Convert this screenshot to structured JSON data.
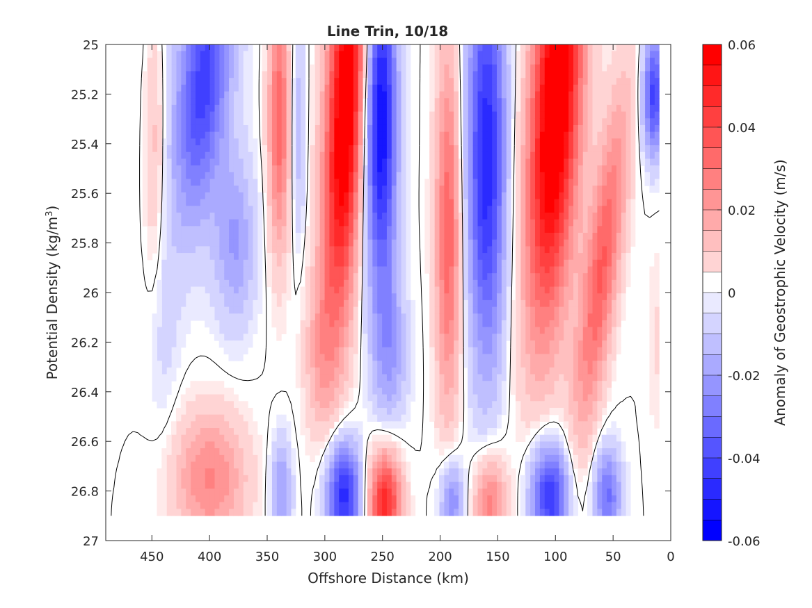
{
  "chart_data": {
    "type": "heatmap",
    "subtype": "filled-contour",
    "title": "Line Trin, 10/18",
    "xlabel": "Offshore Distance (km)",
    "ylabel_main": "Potential Density (kg/m",
    "ylabel_sup": "3",
    "ylabel_close": ")",
    "colorbar_label": "Anomaly of Geostrophic Velocity (m/s)",
    "xlim": [
      0,
      490
    ],
    "x_reversed": true,
    "ylim": [
      25,
      27
    ],
    "y_reversed": true,
    "xticks": [
      450,
      400,
      350,
      300,
      250,
      200,
      150,
      100,
      50,
      0
    ],
    "yticks": [
      25,
      25.2,
      25.4,
      25.6,
      25.8,
      26,
      26.2,
      26.4,
      26.6,
      26.8,
      27
    ],
    "ytick_labels": [
      "25",
      "25.2",
      "25.4",
      "25.6",
      "25.8",
      "26",
      "26.2",
      "26.4",
      "26.6",
      "26.8",
      "27"
    ],
    "colorbar_ticks": [
      0.06,
      0.04,
      0.02,
      0,
      -0.02,
      -0.04,
      -0.06
    ],
    "colorbar_tick_labels": [
      "0.06",
      "0.04",
      "0.02",
      "0",
      "-0.02",
      "-0.04",
      "-0.06"
    ],
    "color_levels": {
      "min": -0.06,
      "max": 0.06,
      "step": 0.005
    },
    "colormap": {
      "negative": "#0000ff",
      "zero": "#ffffff",
      "positive": "#ff0000"
    },
    "data_extent": {
      "x": [
        10,
        487
      ],
      "y": [
        25,
        26.9
      ]
    },
    "zero_contour": true,
    "grid": false,
    "legend": "colorbar-right",
    "features": [
      {
        "x": 430,
        "y": 25.0,
        "value": -0.004,
        "sx": 55,
        "sy": 0.9,
        "tilt": 0
      },
      {
        "x": 448,
        "y": 25.4,
        "value": 0.016,
        "sx": 9,
        "sy": 0.55,
        "tilt": 0
      },
      {
        "x": 405,
        "y": 25.15,
        "value": -0.04,
        "sx": 22,
        "sy": 0.55,
        "tilt": 20
      },
      {
        "x": 378,
        "y": 25.8,
        "value": -0.02,
        "sx": 18,
        "sy": 0.35,
        "tilt": 0
      },
      {
        "x": 440,
        "y": 26.2,
        "value": -0.006,
        "sx": 14,
        "sy": 0.45,
        "tilt": 0
      },
      {
        "x": 400,
        "y": 26.75,
        "value": 0.026,
        "sx": 32,
        "sy": 0.28,
        "tilt": 0
      },
      {
        "x": 340,
        "y": 25.3,
        "value": 0.036,
        "sx": 9,
        "sy": 0.55,
        "tilt": 0
      },
      {
        "x": 323,
        "y": 25.35,
        "value": -0.016,
        "sx": 6,
        "sy": 0.45,
        "tilt": 0
      },
      {
        "x": 338,
        "y": 26.8,
        "value": -0.022,
        "sx": 9,
        "sy": 0.22,
        "tilt": 0
      },
      {
        "x": 282,
        "y": 25.25,
        "value": 0.068,
        "sx": 17,
        "sy": 0.9,
        "tilt": 10
      },
      {
        "x": 305,
        "y": 26.25,
        "value": 0.012,
        "sx": 14,
        "sy": 0.3,
        "tilt": 0
      },
      {
        "x": 284,
        "y": 26.82,
        "value": -0.05,
        "sx": 15,
        "sy": 0.22,
        "tilt": 0
      },
      {
        "x": 252,
        "y": 25.3,
        "value": -0.058,
        "sx": 14,
        "sy": 0.7,
        "tilt": 0
      },
      {
        "x": 243,
        "y": 26.25,
        "value": -0.018,
        "sx": 15,
        "sy": 0.32,
        "tilt": 0
      },
      {
        "x": 248,
        "y": 26.85,
        "value": 0.05,
        "sx": 14,
        "sy": 0.22,
        "tilt": 0
      },
      {
        "x": 193,
        "y": 25.75,
        "value": 0.036,
        "sx": 11,
        "sy": 0.75,
        "tilt": 0
      },
      {
        "x": 190,
        "y": 26.85,
        "value": -0.028,
        "sx": 10,
        "sy": 0.18,
        "tilt": 0
      },
      {
        "x": 160,
        "y": 25.45,
        "value": -0.05,
        "sx": 17,
        "sy": 0.85,
        "tilt": 0
      },
      {
        "x": 157,
        "y": 26.85,
        "value": 0.03,
        "sx": 14,
        "sy": 0.2,
        "tilt": 0
      },
      {
        "x": 100,
        "y": 25.25,
        "value": 0.07,
        "sx": 22,
        "sy": 0.9,
        "tilt": 12
      },
      {
        "x": 105,
        "y": 26.82,
        "value": -0.048,
        "sx": 17,
        "sy": 0.22,
        "tilt": 0
      },
      {
        "x": 60,
        "y": 25.9,
        "value": 0.036,
        "sx": 15,
        "sy": 0.7,
        "tilt": 25
      },
      {
        "x": 55,
        "y": 26.82,
        "value": -0.032,
        "sx": 12,
        "sy": 0.2,
        "tilt": 0
      },
      {
        "x": 15,
        "y": 25.2,
        "value": -0.045,
        "sx": 9,
        "sy": 0.25,
        "tilt": 0
      },
      {
        "x": 12,
        "y": 26.2,
        "value": 0.006,
        "sx": 8,
        "sy": 0.4,
        "tilt": 0
      }
    ]
  }
}
